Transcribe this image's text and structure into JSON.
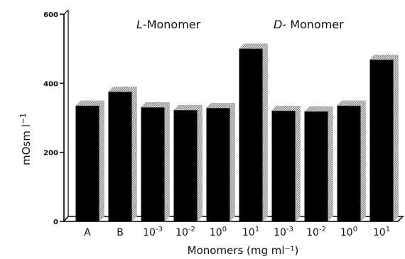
{
  "chart_data": {
    "type": "bar",
    "categories": [
      {
        "base": "A",
        "exp": ""
      },
      {
        "base": "B",
        "exp": ""
      },
      {
        "base": "10",
        "exp": "-3"
      },
      {
        "base": "10",
        "exp": "-2"
      },
      {
        "base": "10",
        "exp": "0"
      },
      {
        "base": "10",
        "exp": "1"
      },
      {
        "base": "10",
        "exp": "-3"
      },
      {
        "base": "10",
        "exp": "-2"
      },
      {
        "base": "10",
        "exp": "0"
      },
      {
        "base": "10",
        "exp": "1"
      }
    ],
    "values": [
      335,
      375,
      330,
      322,
      328,
      500,
      320,
      318,
      335,
      468
    ],
    "ylabel": {
      "base": "mOsm  l",
      "exp": "−1"
    },
    "xlabel": "Monomers (mg ml⁻¹)",
    "ylim": [
      0,
      600
    ],
    "yticks": [
      0,
      200,
      400,
      600
    ],
    "annotations": [
      {
        "italic": "L",
        "rest": "-Monomer"
      },
      {
        "italic": "D",
        "rest": "- Monomer"
      }
    ],
    "grid": false,
    "bar_color": "#000000",
    "shadow_color": "#b0b0b0"
  }
}
